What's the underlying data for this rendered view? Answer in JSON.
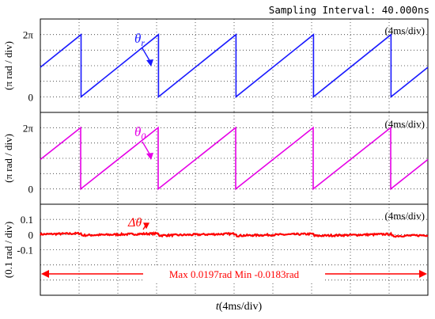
{
  "header": {
    "sampling_interval": "Sampling Interval:  40.000ns"
  },
  "colors": {
    "theta_r": "#1a1aff",
    "theta_0": "#e600e6",
    "delta": "#ff0000",
    "grid": "#333333",
    "frame": "#000000"
  },
  "chart_data": [
    {
      "type": "line",
      "series": [
        {
          "name": "θr",
          "period_ms": 8,
          "range": [
            0,
            6.2832
          ],
          "unit": "rad"
        }
      ],
      "timebase": "(4ms/div)",
      "ylabel": "(π rad / div)",
      "yticks": [
        "2π",
        "π",
        "0"
      ],
      "annotation": {
        "symbol": "θ",
        "sub": "r"
      },
      "grid": true
    },
    {
      "type": "line",
      "series": [
        {
          "name": "θ0",
          "period_ms": 8,
          "range": [
            0,
            6.2832
          ],
          "unit": "rad"
        }
      ],
      "timebase": "(4ms/div)",
      "ylabel": "(π rad / div)",
      "yticks": [
        "2π",
        "π",
        "0"
      ],
      "annotation": {
        "symbol": "θ",
        "sub": "0"
      },
      "grid": true
    },
    {
      "type": "line",
      "series": [
        {
          "name": "Δθ",
          "max": 0.0197,
          "min": -0.0183,
          "unit": "rad"
        }
      ],
      "timebase": "(4ms/div)",
      "ylabel": "(0.1 rad / div)",
      "yticks": [
        "0.1",
        "0",
        "-0.1"
      ],
      "annotation": {
        "symbol": "Δθ"
      },
      "range_text": "Max 0.0197rad  Min -0.0183rad",
      "grid": true
    }
  ],
  "xlabel": {
    "italic": "t",
    "rest": "(4ms/div)"
  }
}
